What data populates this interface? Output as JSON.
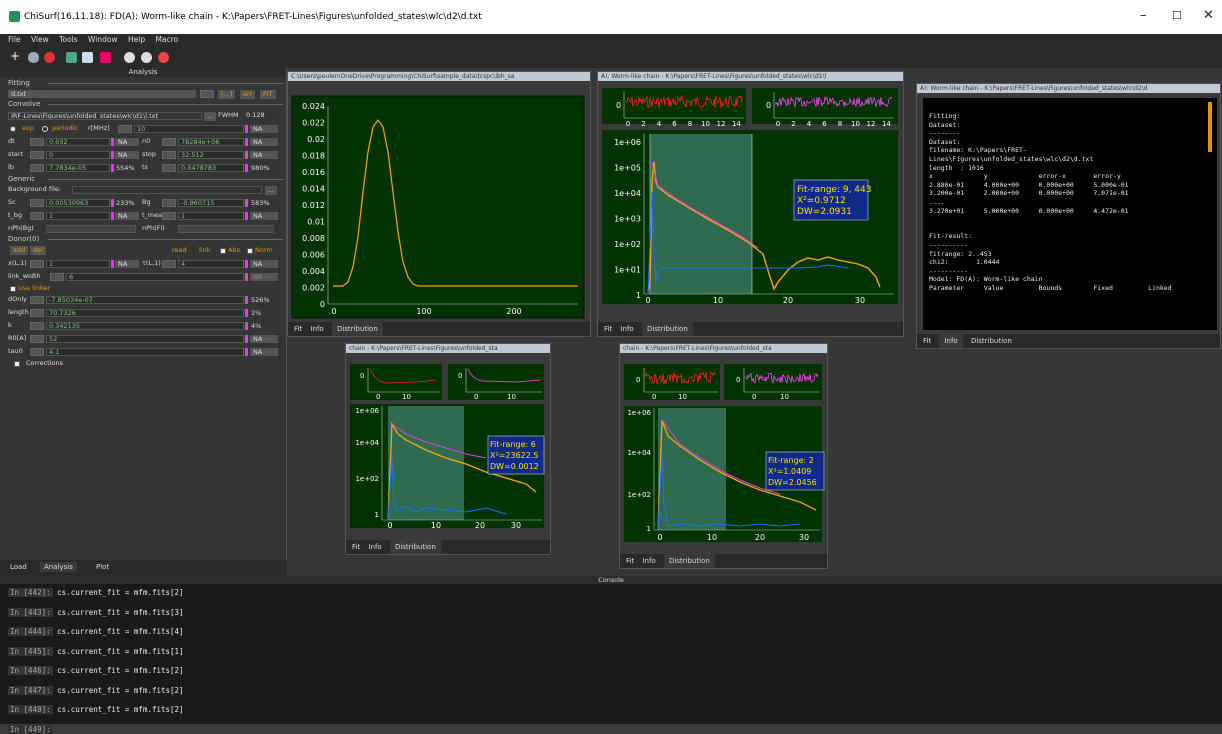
{
  "window": {
    "title": "ChiSurf(16.11.18): FD(A): Worm-like chain - K:\\Papers\\FRET-Lines\\Figures\\unfolded_states\\wlc\\d2\\d.txt"
  },
  "menu": [
    "File",
    "View",
    "Tools",
    "Window",
    "Help",
    "Macro"
  ],
  "analysis_panel": {
    "title": "Analysis",
    "fitting_label": "Fitting",
    "dataset": "d.txt",
    "btn_dots": "[...]",
    "btn_err": "err",
    "btn_fit": "FIT",
    "convolve_label": "Convolve",
    "irf_path": "IRF-Lines\\Figures\\unfolded_states\\wlc\\d1\\l.txt",
    "irf_btn": "...",
    "fwhm_label": "FWHM",
    "fwhm_value": "0.128",
    "exp_label": "exp",
    "periodic_label": "periodic",
    "rmhz_label": "r[MHz]",
    "rmhz_value": "10",
    "dt_label": "dt",
    "dt_value": "0.032",
    "n0_label": "n0",
    "n0_value": "78284e+06",
    "start_label": "start",
    "start_value": "0",
    "stop_label": "stop",
    "stop_value": "32.512",
    "lb_label": "lb",
    "lb_value": "7.7834e-05",
    "lb_pct": "554%",
    "ts_label": "ts",
    "ts_value": "0.0478783",
    "ts_pct": "980%",
    "generic_label": "Generic",
    "bg_file_label": "Background file:",
    "sc_label": "Sc",
    "sc_value": "0.00530963",
    "sc_pct": "233%",
    "bg_label": "Bg",
    "bg_value": "-0.960715",
    "bg_pct": "583%",
    "tbg_label": "t_bg",
    "tbg_value": "1",
    "tmeas_label": "t_meas",
    "tmeas_value": "1",
    "nph_bg": "nPh(Bg)",
    "nph_fl": "nPh(Fl)",
    "donor_label": "Donor(0)",
    "btn_add": "add",
    "btn_del": "del",
    "btn_read": "read",
    "btn_link": "link",
    "abs_label": "Abs.",
    "norm_label": "Norm",
    "xl1_label": "x(L,1)",
    "xl1_value": "1",
    "tl1_label": "τ(L,1)",
    "tl1_value": "4",
    "link_width_label": "link_width",
    "link_width_value": "6",
    "use_linker_label": "Use linker",
    "donly_label": "dOnly",
    "donly_value": "-7.85034e-07",
    "donly_pct": "526%",
    "length_label": "length",
    "length_value": "70.7326",
    "length_pct": "1%",
    "k_label": "k",
    "k_value": "0.342135",
    "k_pct": "4%",
    "r0_label": "R0[A]",
    "r0_value": "52",
    "tau0_label": "tau0",
    "tau0_value": "4.1",
    "corrections_label": "Corrections",
    "na_label": "NA",
    "tabs": [
      "Load",
      "Analysis",
      "Plot"
    ]
  },
  "windows": {
    "irf": {
      "title": "C:\\Users\\peulen\\OneDrive\\Programming\\ChiSurf\\sample_data\\tcspc\\ibh_sa",
      "tabs": [
        "Fit",
        "Info",
        "Distribution"
      ]
    },
    "wlc_d1": {
      "title": "A): Worm-like chain - K:\\Papers\\FRET-Lines\\Figures\\unfolded_states\\wlc\\d1\\l",
      "fit_range": "Fit-range: 9, 443",
      "chi2": "X²=0.9712",
      "dw": "DW=2.0931",
      "tabs": [
        "Fit",
        "Info",
        "Distribution"
      ]
    },
    "info": {
      "title": "A): Worm-like chain - K:\\Papers\\FRET-Lines\\Figures\\unfolded_states\\wlc\\d2\\d",
      "text": "Fitting:\nDataset:\n--------\nDataset:\nfilename: K:\\Papers\\FRET-\nLines\\Figures\\unfolded_states\\wlc\\d2\\d.txt\nlength  : 1016\nx             y             error-x       error-y\n2.880e-01     4.000e+00     0.000e+00     5.000e-01\n3.200e-01     2.000e+00     0.000e+00     7.071e-01\n....\n3.270e+01     5.000e+00     0.000e+00     4.472e-01\n\n\nFit-result:\n----------\nfitrange: 2..453\nchi2:       1.0444\n----------\nModel: FD(A): Worm-like chain\nParameter     Value         Bounds        Fixed         Linked",
      "tabs": [
        "Fit",
        "Info",
        "Distribution"
      ]
    },
    "small1": {
      "title": "chain - K:\\Papers\\FRET-Lines\\Figures\\unfolded_sta",
      "fit_range": "Fit-range: 6",
      "chi2": "X²=23622.5",
      "dw": "DW=0.0012",
      "tabs": [
        "Fit",
        "Info",
        "Distribution"
      ]
    },
    "small2": {
      "title": "chain - K:\\Papers\\FRET-Lines\\Figures\\unfolded_sta",
      "fit_range": "Fit-range: 2",
      "chi2": "X²=1.0409",
      "dw": "DW=2.0456",
      "tabs": [
        "Fit",
        "Info",
        "Distribution"
      ]
    }
  },
  "console": {
    "title": "Console",
    "lines": [
      {
        "prompt": "In [442]:",
        "code": "cs.current_fit = mfm.fits[2]"
      },
      {
        "prompt": "In [443]:",
        "code": "cs.current_fit = mfm.fits[3]"
      },
      {
        "prompt": "In [444]:",
        "code": "cs.current_fit = mfm.fits[4]"
      },
      {
        "prompt": "In [445]:",
        "code": "cs.current_fit = mfm.fits[1]"
      },
      {
        "prompt": "In [446]:",
        "code": "cs.current_fit = mfm.fits[2]"
      },
      {
        "prompt": "In [447]:",
        "code": "cs.current_fit = mfm.fits[2]"
      },
      {
        "prompt": "In [448]:",
        "code": "cs.current_fit = mfm.fits[2]"
      },
      {
        "prompt": "In [449]:",
        "code": ""
      }
    ]
  },
  "ticks": {
    "irf_y": [
      "0.024",
      "0.022",
      "0.02",
      "0.018",
      "0.016",
      "0.014",
      "0.012",
      "0.01",
      "0.008",
      "0.006",
      "0.004",
      "0.002",
      "0"
    ],
    "irf_x": [
      "0",
      "100",
      "200"
    ],
    "res_x_full": [
      "0",
      "2",
      "4",
      "6",
      "8",
      "10",
      "12",
      "14"
    ],
    "res_x_small": [
      "0",
      "10"
    ],
    "log_y_big": [
      "1e+06",
      "1e+05",
      "1e+04",
      "1e+03",
      "1e+02",
      "1e+01",
      "1"
    ],
    "log_y_small": [
      "1e+06",
      "1e+04",
      "1e+02",
      "1"
    ],
    "big_x": [
      "0",
      "10",
      "20",
      "30"
    ],
    "small_x": [
      "0",
      "10",
      "20",
      "30"
    ],
    "res_y0": "0"
  },
  "colors": {
    "plot_bg": "#003300",
    "fit_band": "#2e6b50",
    "data_orange": "#ffa500",
    "irf_blue": "#1e6fff",
    "model_magenta": "#e040e0",
    "resid_red": "#ff2020",
    "resid_magenta": "#ff40ff",
    "info_bg": "#000000",
    "accent_orange": "#ffa500"
  }
}
